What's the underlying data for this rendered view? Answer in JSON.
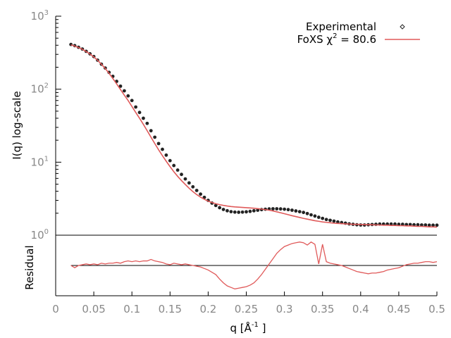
{
  "chart_data": [
    {
      "type": "scatter",
      "panel": "main",
      "ylabel": "I(q) log-scale",
      "yscale": "log",
      "ylim": [
        1,
        1000
      ],
      "xlim": [
        0,
        0.5
      ],
      "y_ticks": [
        {
          "value": 1,
          "base": "10",
          "exp": "0"
        },
        {
          "value": 10,
          "base": "10",
          "exp": "1"
        },
        {
          "value": 100,
          "base": "10",
          "exp": "2"
        },
        {
          "value": 1000,
          "base": "10",
          "exp": "3"
        }
      ],
      "legend_position": "top-right",
      "series": [
        {
          "name": "Experimental",
          "style": "points",
          "color": "#222222",
          "x": [
            0.02,
            0.025,
            0.03,
            0.035,
            0.04,
            0.045,
            0.05,
            0.055,
            0.06,
            0.065,
            0.07,
            0.075,
            0.08,
            0.085,
            0.09,
            0.095,
            0.1,
            0.105,
            0.11,
            0.115,
            0.12,
            0.125,
            0.13,
            0.135,
            0.14,
            0.145,
            0.15,
            0.155,
            0.16,
            0.165,
            0.17,
            0.175,
            0.18,
            0.185,
            0.19,
            0.195,
            0.2,
            0.205,
            0.21,
            0.215,
            0.22,
            0.225,
            0.23,
            0.235,
            0.24,
            0.245,
            0.25,
            0.255,
            0.26,
            0.265,
            0.27,
            0.275,
            0.28,
            0.285,
            0.29,
            0.295,
            0.3,
            0.305,
            0.31,
            0.315,
            0.32,
            0.325,
            0.33,
            0.335,
            0.34,
            0.345,
            0.35,
            0.355,
            0.36,
            0.365,
            0.37,
            0.375,
            0.38,
            0.385,
            0.39,
            0.395,
            0.4,
            0.405,
            0.41,
            0.415,
            0.42,
            0.425,
            0.43,
            0.435,
            0.44,
            0.445,
            0.45,
            0.455,
            0.46,
            0.465,
            0.47,
            0.475,
            0.48,
            0.485,
            0.49,
            0.495,
            0.5
          ],
          "y": [
            410,
            395,
            375,
            355,
            330,
            305,
            280,
            250,
            220,
            195,
            170,
            150,
            128,
            110,
            95,
            81,
            70,
            57,
            48,
            40,
            34,
            27,
            22,
            18,
            15,
            12.5,
            10.5,
            9,
            7.8,
            6.8,
            5.9,
            5.2,
            4.6,
            4.1,
            3.65,
            3.3,
            3.0,
            2.75,
            2.55,
            2.38,
            2.25,
            2.16,
            2.1,
            2.07,
            2.06,
            2.07,
            2.09,
            2.12,
            2.16,
            2.2,
            2.24,
            2.27,
            2.29,
            2.3,
            2.3,
            2.29,
            2.27,
            2.24,
            2.2,
            2.15,
            2.1,
            2.05,
            1.98,
            1.9,
            1.83,
            1.76,
            1.7,
            1.64,
            1.6,
            1.56,
            1.52,
            1.49,
            1.46,
            1.43,
            1.41,
            1.39,
            1.38,
            1.38,
            1.39,
            1.4,
            1.41,
            1.42,
            1.42,
            1.42,
            1.42,
            1.42,
            1.41,
            1.41,
            1.4,
            1.4,
            1.39,
            1.39,
            1.38,
            1.38,
            1.37,
            1.37,
            1.37
          ]
        },
        {
          "name": "FoXS χ2 = 80.6",
          "legend_label": {
            "before": "FoXS χ",
            "sup": "2",
            "after": " = 80.6"
          },
          "style": "line",
          "color": "#e05a5a",
          "x": [
            0.02,
            0.025,
            0.03,
            0.035,
            0.04,
            0.045,
            0.05,
            0.055,
            0.06,
            0.065,
            0.07,
            0.075,
            0.08,
            0.085,
            0.09,
            0.095,
            0.1,
            0.105,
            0.11,
            0.115,
            0.12,
            0.125,
            0.13,
            0.135,
            0.14,
            0.145,
            0.15,
            0.155,
            0.16,
            0.165,
            0.17,
            0.175,
            0.18,
            0.185,
            0.19,
            0.195,
            0.2,
            0.205,
            0.21,
            0.215,
            0.22,
            0.225,
            0.23,
            0.235,
            0.24,
            0.245,
            0.25,
            0.255,
            0.26,
            0.265,
            0.27,
            0.275,
            0.28,
            0.285,
            0.29,
            0.295,
            0.3,
            0.305,
            0.31,
            0.315,
            0.32,
            0.325,
            0.33,
            0.335,
            0.34,
            0.345,
            0.35,
            0.355,
            0.36,
            0.365,
            0.37,
            0.375,
            0.38,
            0.385,
            0.39,
            0.395,
            0.4,
            0.405,
            0.41,
            0.415,
            0.42,
            0.425,
            0.43,
            0.435,
            0.44,
            0.445,
            0.45,
            0.455,
            0.46,
            0.465,
            0.47,
            0.475,
            0.48,
            0.485,
            0.49,
            0.495,
            0.5
          ],
          "y": [
            405,
            390,
            372,
            352,
            328,
            303,
            277,
            249,
            220,
            192,
            165,
            140,
            118,
            99,
            83,
            70,
            58,
            48,
            40,
            33,
            27,
            22,
            18,
            14.8,
            12.3,
            10.3,
            8.7,
            7.4,
            6.4,
            5.6,
            4.95,
            4.4,
            3.95,
            3.6,
            3.32,
            3.1,
            2.93,
            2.8,
            2.7,
            2.62,
            2.56,
            2.51,
            2.47,
            2.44,
            2.42,
            2.4,
            2.38,
            2.36,
            2.34,
            2.31,
            2.28,
            2.24,
            2.2,
            2.15,
            2.09,
            2.03,
            1.97,
            1.91,
            1.85,
            1.8,
            1.75,
            1.7,
            1.66,
            1.62,
            1.58,
            1.55,
            1.52,
            1.5,
            1.48,
            1.46,
            1.45,
            1.44,
            1.43,
            1.42,
            1.41,
            1.41,
            1.4,
            1.4,
            1.39,
            1.39,
            1.38,
            1.38,
            1.37,
            1.37,
            1.36,
            1.36,
            1.35,
            1.35,
            1.34,
            1.34,
            1.33,
            1.32,
            1.32,
            1.31,
            1.3,
            1.3,
            1.29
          ]
        }
      ]
    },
    {
      "type": "line",
      "panel": "residual",
      "ylabel": "Residual",
      "xlabel_base": "q [Å",
      "xlabel_sup": "-1",
      "xlabel_end": " ]",
      "xlim": [
        0,
        0.5
      ],
      "ylim": [
        -4,
        4
      ],
      "x_ticks": [
        "0",
        "0.05",
        "0.1",
        "0.15",
        "0.2",
        "0.25",
        "0.3",
        "0.35",
        "0.4",
        "0.45",
        "0.5"
      ],
      "baseline": 0,
      "series": [
        {
          "name": "",
          "color": "#e05a5a",
          "x": [
            0.02,
            0.025,
            0.03,
            0.035,
            0.04,
            0.045,
            0.05,
            0.055,
            0.06,
            0.065,
            0.07,
            0.075,
            0.08,
            0.085,
            0.09,
            0.095,
            0.1,
            0.105,
            0.11,
            0.115,
            0.12,
            0.125,
            0.13,
            0.135,
            0.14,
            0.145,
            0.15,
            0.155,
            0.16,
            0.165,
            0.17,
            0.175,
            0.18,
            0.185,
            0.19,
            0.195,
            0.2,
            0.205,
            0.21,
            0.215,
            0.22,
            0.225,
            0.23,
            0.235,
            0.24,
            0.245,
            0.25,
            0.255,
            0.26,
            0.265,
            0.27,
            0.275,
            0.28,
            0.285,
            0.29,
            0.295,
            0.3,
            0.305,
            0.31,
            0.315,
            0.32,
            0.325,
            0.33,
            0.335,
            0.34,
            0.345,
            0.35,
            0.355,
            0.36,
            0.365,
            0.37,
            0.375,
            0.38,
            0.385,
            0.39,
            0.395,
            0.4,
            0.405,
            0.41,
            0.415,
            0.42,
            0.425,
            0.43,
            0.435,
            0.44,
            0.445,
            0.45,
            0.455,
            0.46,
            0.465,
            0.47,
            0.475,
            0.48,
            0.485,
            0.49,
            0.495,
            0.5
          ],
          "y": [
            0,
            -0.3,
            0,
            0.1,
            0.2,
            0.1,
            0.2,
            0.1,
            0.3,
            0.2,
            0.3,
            0.3,
            0.4,
            0.3,
            0.5,
            0.6,
            0.5,
            0.6,
            0.5,
            0.6,
            0.6,
            0.8,
            0.6,
            0.5,
            0.4,
            0.2,
            0.1,
            0.3,
            0.2,
            0.1,
            0.2,
            0.1,
            0,
            -0.1,
            -0.2,
            -0.4,
            -0.6,
            -0.9,
            -1.2,
            -1.8,
            -2.3,
            -2.7,
            -2.9,
            -3.1,
            -3.0,
            -2.9,
            -2.8,
            -2.6,
            -2.3,
            -1.8,
            -1.2,
            -0.5,
            0.2,
            0.9,
            1.6,
            2.1,
            2.5,
            2.7,
            2.9,
            3.0,
            3.1,
            3.0,
            2.7,
            3.1,
            2.8,
            0.2,
            2.8,
            0.5,
            0.3,
            0.2,
            0.1,
            0,
            -0.2,
            -0.4,
            -0.6,
            -0.8,
            -0.9,
            -1.0,
            -1.1,
            -1.0,
            -1.0,
            -0.9,
            -0.8,
            -0.6,
            -0.5,
            -0.4,
            -0.3,
            -0.1,
            0.1,
            0.2,
            0.3,
            0.3,
            0.4,
            0.5,
            0.5,
            0.4,
            0.5
          ]
        }
      ]
    }
  ]
}
